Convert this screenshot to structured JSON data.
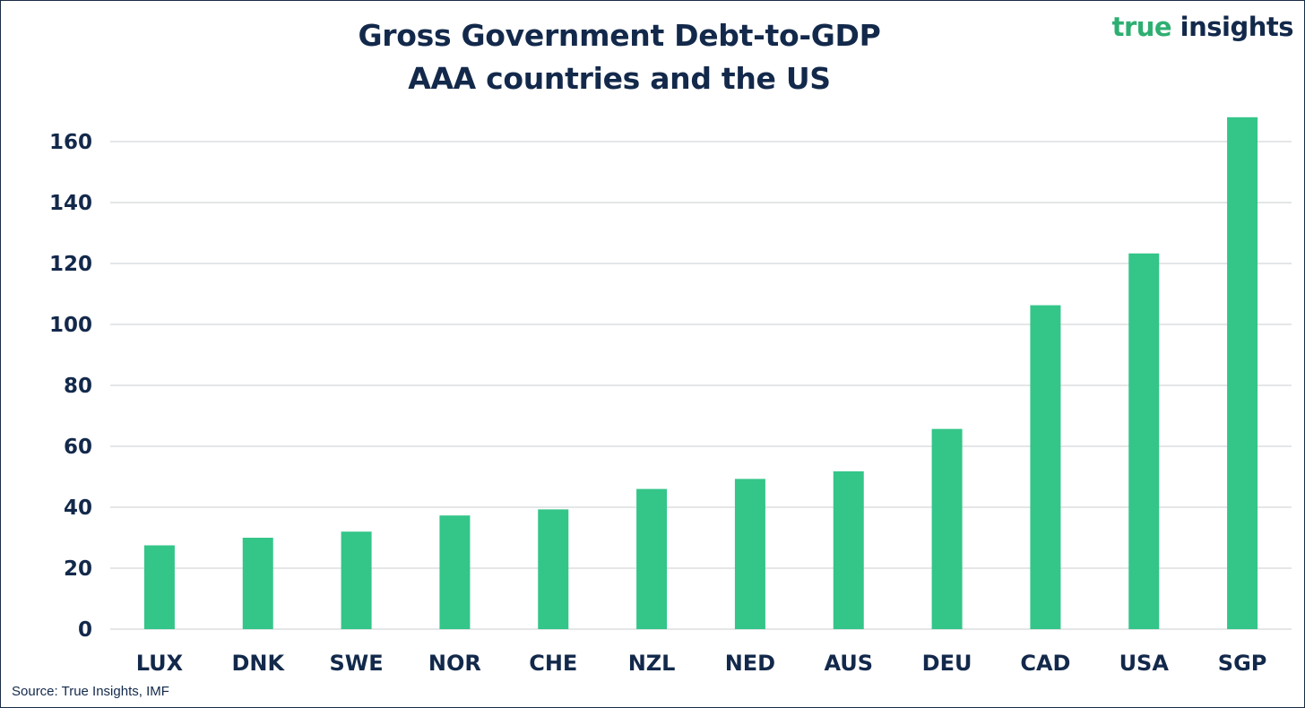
{
  "chart_data": {
    "type": "bar",
    "title": "Gross Government Debt-to-GDP",
    "subtitle": "AAA countries and the US",
    "xlabel": "",
    "ylabel": "",
    "ylim": [
      0,
      170
    ],
    "yticks": [
      0,
      20,
      40,
      60,
      80,
      100,
      120,
      140,
      160
    ],
    "grid": true,
    "categories": [
      "LUX",
      "DNK",
      "SWE",
      "NOR",
      "CHE",
      "NZL",
      "NED",
      "AUS",
      "DEU",
      "CAD",
      "USA",
      "SGP"
    ],
    "values": [
      27.5,
      30,
      32,
      37.3,
      39.3,
      46,
      49.3,
      51.8,
      65.7,
      106.3,
      123.3,
      168
    ],
    "bar_color": "#34c589",
    "grid_color": "#c9ccd1",
    "text_color": "#13294b"
  },
  "brand": {
    "word1": "true",
    "word2": "insights",
    "color1": "#2eaf72",
    "color2": "#13294b"
  },
  "source": "Source: True Insights, IMF"
}
